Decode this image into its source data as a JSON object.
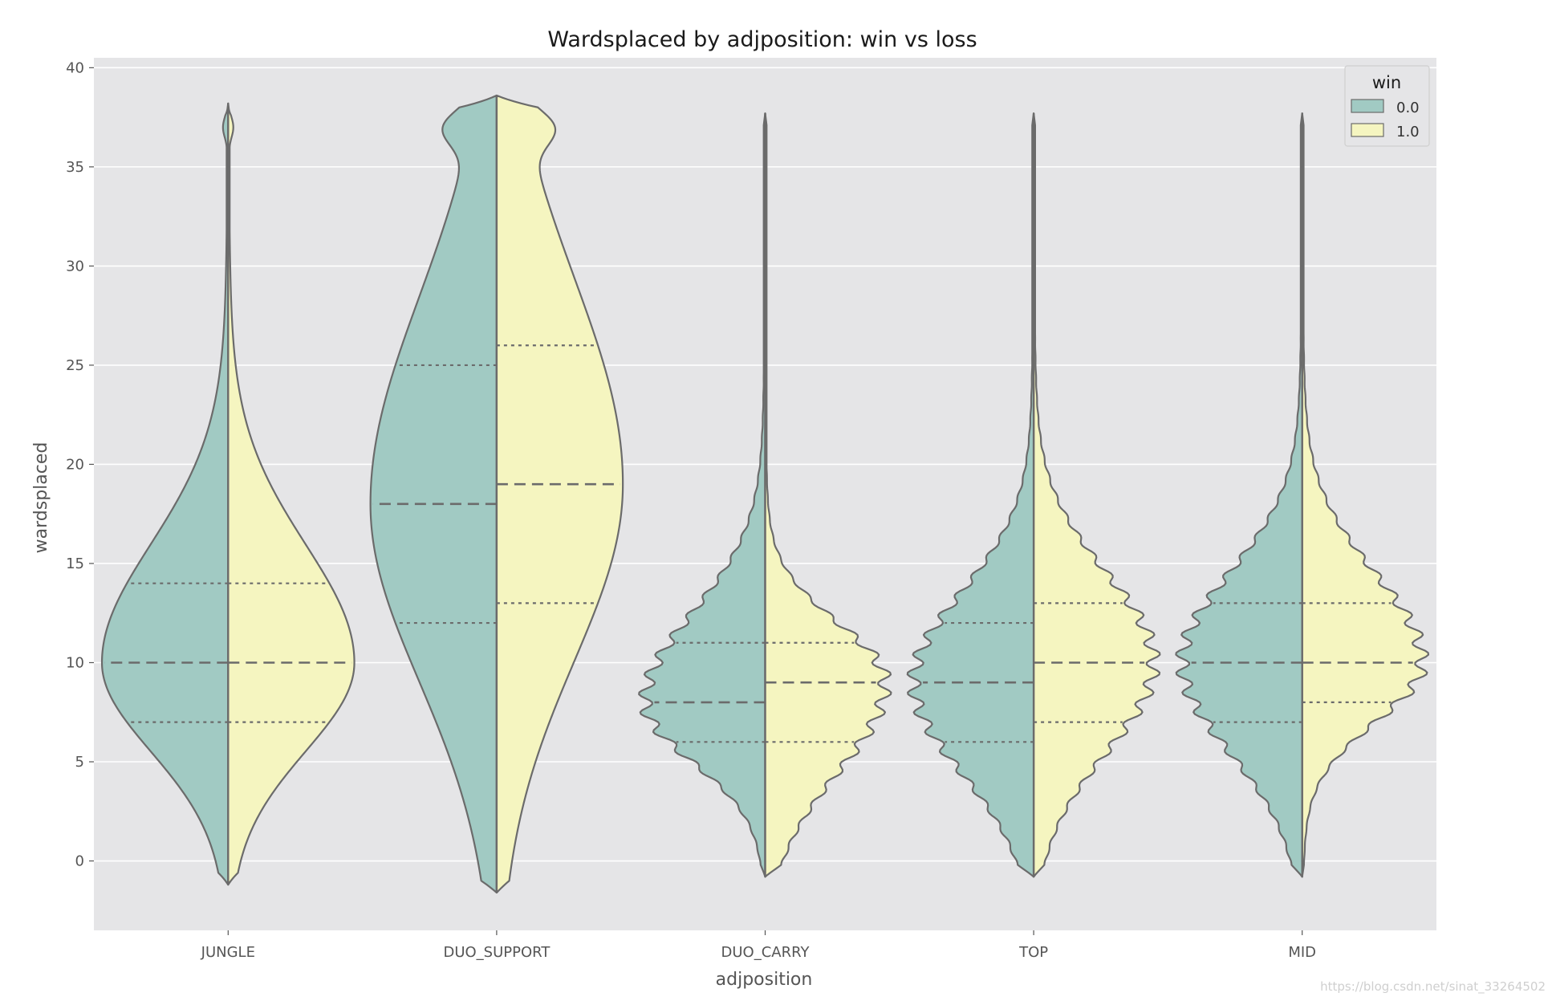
{
  "chart_data": {
    "type": "violin",
    "title": "Wardsplaced by adjposition: win vs loss",
    "xlabel": "adjposition",
    "ylabel": "wardsplaced",
    "ylim": [
      -3.5,
      40.5
    ],
    "yticks": [
      0,
      5,
      10,
      15,
      20,
      25,
      30,
      35,
      40
    ],
    "grid": true,
    "legend": {
      "title": "win",
      "placement": "top-right",
      "entries": [
        "0.0",
        "1.0"
      ]
    },
    "colors": {
      "0.0": "#a1cac3",
      "1.0": "#f5f5c0",
      "outline": "#6b6b6b",
      "background": "#e5e5e7",
      "grid": "#ffffff"
    },
    "categories": [
      "JUNGLE",
      "DUO_SUPPORT",
      "DUO_CARRY",
      "TOP",
      "MID"
    ],
    "series": [
      {
        "name": "0.0",
        "quartiles": [
          [
            7,
            10,
            14
          ],
          [
            12,
            18,
            25
          ],
          [
            6,
            8,
            11
          ],
          [
            6,
            9,
            12
          ],
          [
            7,
            10,
            13
          ]
        ],
        "range": [
          [
            -1.2,
            38.2
          ],
          [
            -1.6,
            38.6
          ],
          [
            -0.8,
            37.7
          ],
          [
            -0.8,
            37.7
          ],
          [
            -0.8,
            37.7
          ]
        ]
      },
      {
        "name": "1.0",
        "quartiles": [
          [
            7,
            10,
            14
          ],
          [
            13,
            19,
            26
          ],
          [
            6,
            9,
            11
          ],
          [
            7,
            10,
            13
          ],
          [
            8,
            10,
            13
          ]
        ],
        "range": [
          [
            -1.2,
            38.2
          ],
          [
            -1.6,
            38.6
          ],
          [
            -0.8,
            37.7
          ],
          [
            -0.8,
            37.7
          ],
          [
            -0.8,
            37.7
          ]
        ]
      }
    ]
  },
  "watermark": "https://blog.csdn.net/sinat_33264502"
}
